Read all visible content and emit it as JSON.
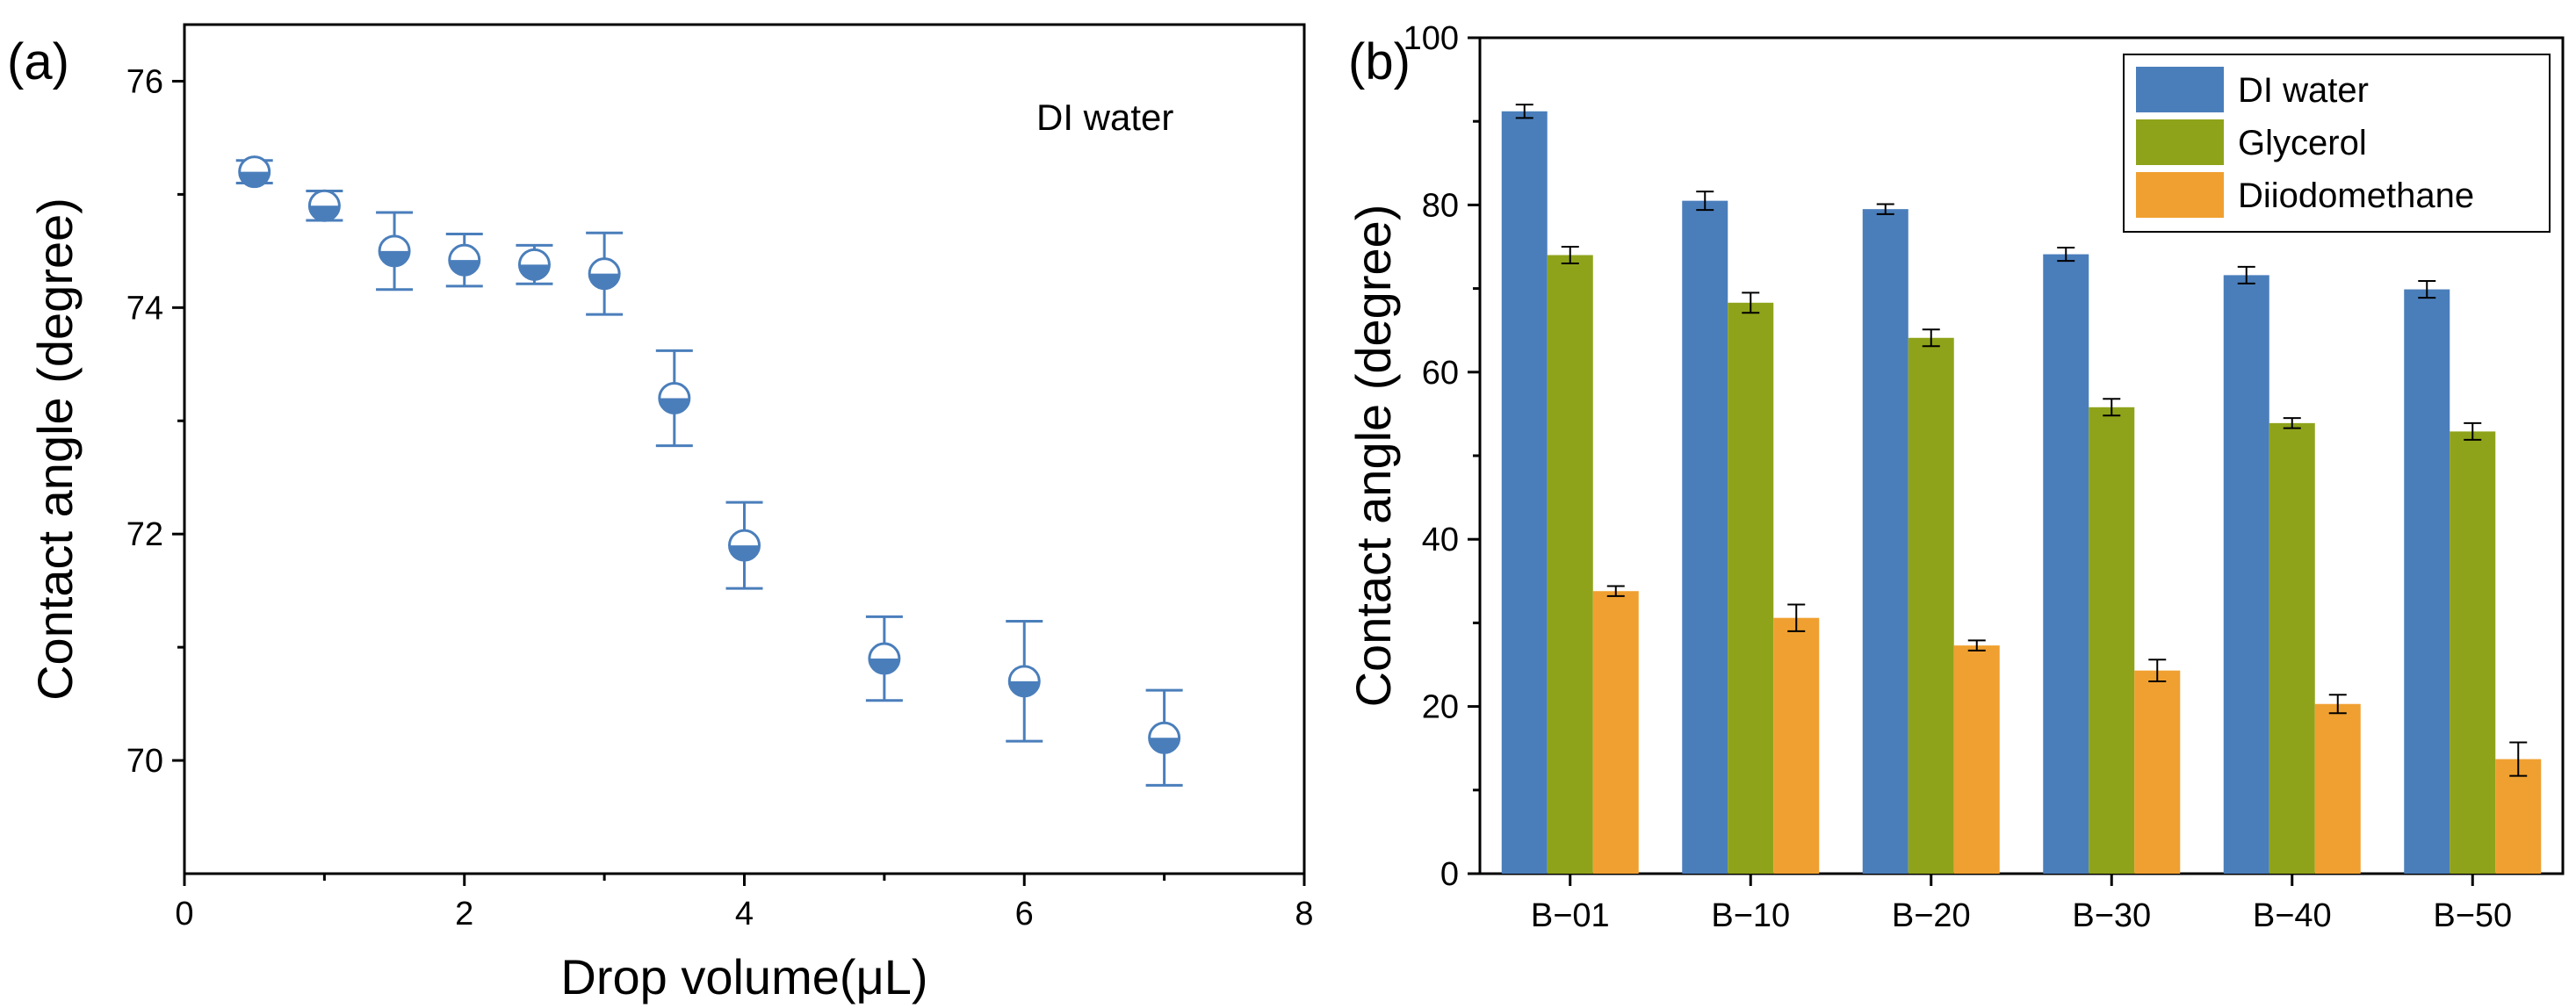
{
  "chart_data": [
    {
      "type": "scatter",
      "panel_label": "(a)",
      "annotation": "DI water",
      "xlabel": "Drop volume(μL)",
      "ylabel": "Contact angle (degree)",
      "xlim": [
        0,
        8
      ],
      "ylim": [
        69,
        76.5
      ],
      "xticks": [
        0,
        2,
        4,
        6,
        8
      ],
      "yticks": [
        70,
        72,
        74,
        76
      ],
      "color": "#4a7ebb",
      "points": [
        {
          "x": 0.5,
          "y": 75.2,
          "err": 0.1
        },
        {
          "x": 1.0,
          "y": 74.9,
          "err": 0.13
        },
        {
          "x": 1.5,
          "y": 74.5,
          "err": 0.34
        },
        {
          "x": 2.0,
          "y": 74.42,
          "err": 0.23
        },
        {
          "x": 2.5,
          "y": 74.38,
          "err": 0.17
        },
        {
          "x": 3.0,
          "y": 74.3,
          "err": 0.36
        },
        {
          "x": 3.5,
          "y": 73.2,
          "err": 0.42
        },
        {
          "x": 4.0,
          "y": 71.9,
          "err": 0.38
        },
        {
          "x": 5.0,
          "y": 70.9,
          "err": 0.37
        },
        {
          "x": 6.0,
          "y": 70.7,
          "err": 0.53
        },
        {
          "x": 7.0,
          "y": 70.2,
          "err": 0.42
        }
      ]
    },
    {
      "type": "bar",
      "panel_label": "(b)",
      "ylabel": "Contact angle (degree)",
      "ylim": [
        0,
        100
      ],
      "yticks": [
        0,
        20,
        40,
        60,
        80,
        100
      ],
      "categories": [
        "B−01",
        "B−10",
        "B−20",
        "B−30",
        "B−40",
        "B−50"
      ],
      "legend_position": "top-right",
      "series": [
        {
          "name": "DI water",
          "color": "#4a7ebb",
          "values": [
            91.2,
            80.5,
            79.5,
            74.1,
            71.6,
            69.9
          ],
          "errors": [
            0.8,
            1.1,
            0.6,
            0.8,
            1.0,
            1.0
          ]
        },
        {
          "name": "Glycerol",
          "color": "#8fa31a",
          "values": [
            74.0,
            68.3,
            64.1,
            55.8,
            53.9,
            52.9
          ],
          "errors": [
            1.0,
            1.2,
            1.0,
            1.0,
            0.6,
            1.0
          ]
        },
        {
          "name": "Diiodomethane",
          "color": "#f0a030",
          "values": [
            33.8,
            30.6,
            27.3,
            24.3,
            20.3,
            13.7
          ],
          "errors": [
            0.6,
            1.6,
            0.6,
            1.3,
            1.1,
            2.0
          ]
        }
      ]
    }
  ]
}
